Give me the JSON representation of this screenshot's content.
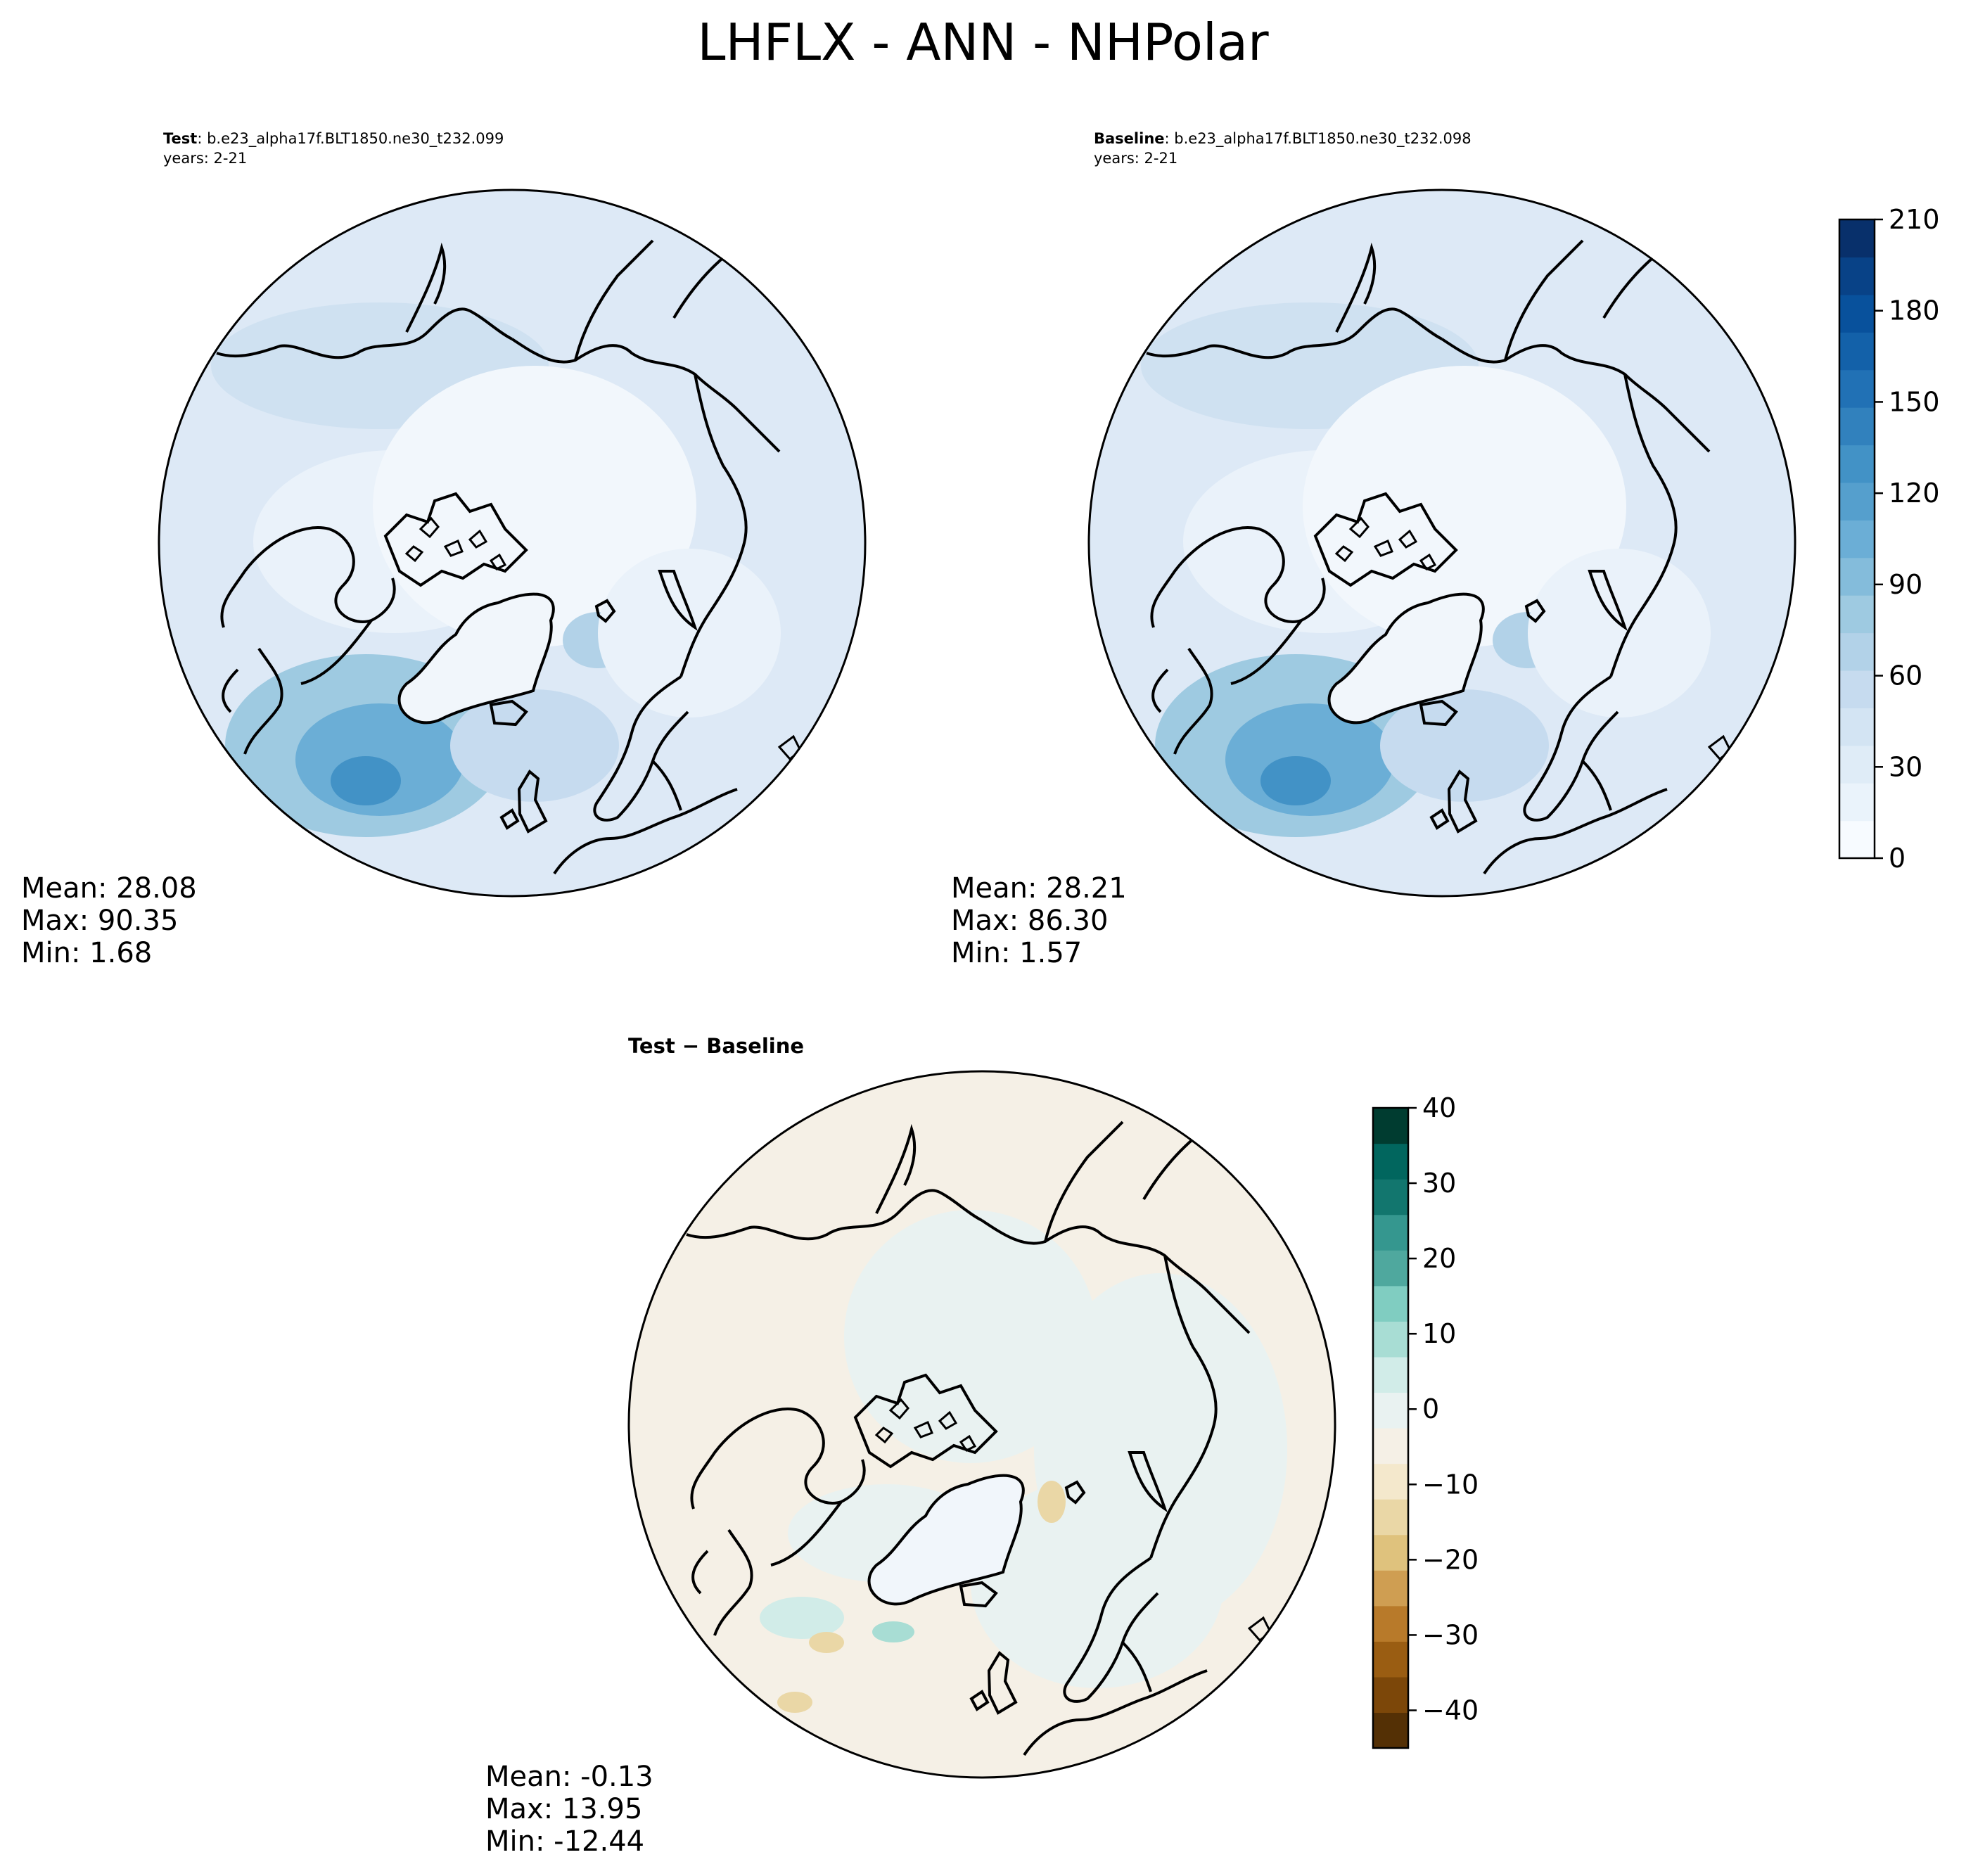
{
  "figure": {
    "title": "LHFLX - ANN - NHPolar"
  },
  "panels": {
    "test": {
      "label": "Test",
      "case": ": b.e23_alpha17f.BLT1850.ne30_t232.099",
      "years": "years: 2-21",
      "mean": "Mean: 28.08",
      "max": "Max: 90.35",
      "min": "Min:  1.68"
    },
    "baseline": {
      "label": "Baseline",
      "case": ": b.e23_alpha17f.BLT1850.ne30_t232.098",
      "years": "years: 2-21",
      "mean": "Mean: 28.21",
      "max": "Max: 86.30",
      "min": "Min:  1.57"
    },
    "diff": {
      "title": "Test − Baseline",
      "mean": "Mean: -0.13",
      "max": "Max: 13.95",
      "min": "Min: -12.44"
    }
  },
  "colorbars": {
    "field": {
      "ticks": [
        "210",
        "180",
        "150",
        "120",
        "90",
        "60",
        "30",
        "0"
      ],
      "range": [
        0,
        210
      ],
      "colors": [
        "#f7fbff",
        "#eaf3fb",
        "#dfecf7",
        "#d3e4f3",
        "#c6dbef",
        "#b2d2e8",
        "#9ecae1",
        "#84bcdb",
        "#6baed6",
        "#559fcd",
        "#4292c6",
        "#3181bd",
        "#2171b5",
        "#1361a9",
        "#08519c",
        "#084287",
        "#08306b"
      ]
    },
    "diff": {
      "ticks": [
        "40",
        "30",
        "20",
        "10",
        "0",
        "−10",
        "−20",
        "−30",
        "−40"
      ],
      "range": [
        -45,
        40
      ],
      "colors": [
        "#543005",
        "#7c4709",
        "#9a5d12",
        "#b87a2a",
        "#cf9e52",
        "#dfc27d",
        "#ead7a6",
        "#f4e8cc",
        "#f5f0e6",
        "#e9f2f1",
        "#d1ece8",
        "#a8ddd4",
        "#80cdc1",
        "#4fa89e",
        "#35978f",
        "#12766e",
        "#01665e",
        "#003c30"
      ]
    }
  }
}
